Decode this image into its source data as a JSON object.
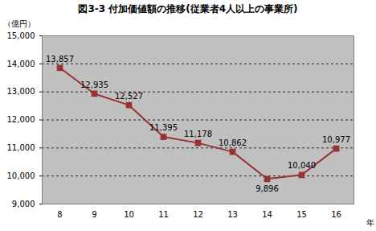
{
  "chart_data": {
    "type": "line",
    "title": "図3-3 付加価値額の推移(従業者4人以上の事業所)",
    "x_label": "年",
    "y_label": "（億円）",
    "categories": [
      "8",
      "9",
      "10",
      "11",
      "12",
      "13",
      "14",
      "15",
      "16"
    ],
    "values": [
      13857,
      12935,
      12527,
      11395,
      11178,
      10862,
      9896,
      10040,
      10977
    ],
    "value_labels": [
      "13,857",
      "12,935",
      "12,527",
      "11,395",
      "11,178",
      "10,862",
      "9,896",
      "10,040",
      "10,977"
    ],
    "color": "#993333",
    "marker": "square",
    "line_style": "solid",
    "data_labels": true,
    "grid": true,
    "ylim": [
      9000,
      15000
    ],
    "yticks": [
      {
        "value": 9000,
        "label": "9,000"
      },
      {
        "value": 10000,
        "label": "10,000"
      },
      {
        "value": 11000,
        "label": "11,000"
      },
      {
        "value": 12000,
        "label": "12,000"
      },
      {
        "value": 13000,
        "label": "13,000"
      },
      {
        "value": 14000,
        "label": "14,000"
      },
      {
        "value": 15000,
        "label": "15,000"
      }
    ]
  }
}
